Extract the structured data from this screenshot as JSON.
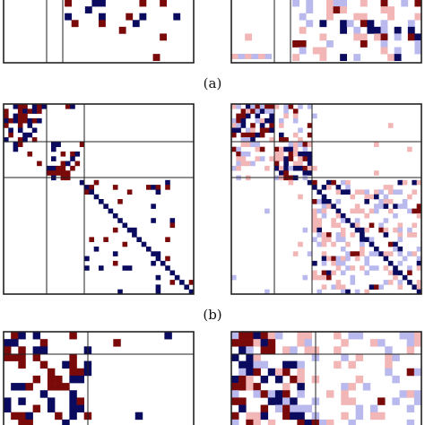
{
  "captions": {
    "a": "(a)",
    "b": "(b)"
  },
  "colors": {
    "dark_blue": "#0a0a5e",
    "dark_red": "#7a0a0a",
    "light_red": "#f2b6b6",
    "light_blue": "#b9b9ee",
    "frame": "#222222",
    "background": "#ffffff"
  },
  "panels": [
    {
      "id": "a-left",
      "row": "a",
      "style": "binary"
    },
    {
      "id": "a-right",
      "row": "a",
      "style": "weighted"
    },
    {
      "id": "b-left",
      "row": "b",
      "style": "binary"
    },
    {
      "id": "b-right",
      "row": "b",
      "style": "weighted"
    },
    {
      "id": "c-left",
      "row": "c",
      "style": "binary"
    },
    {
      "id": "c-right",
      "row": "c",
      "style": "weighted"
    }
  ]
}
